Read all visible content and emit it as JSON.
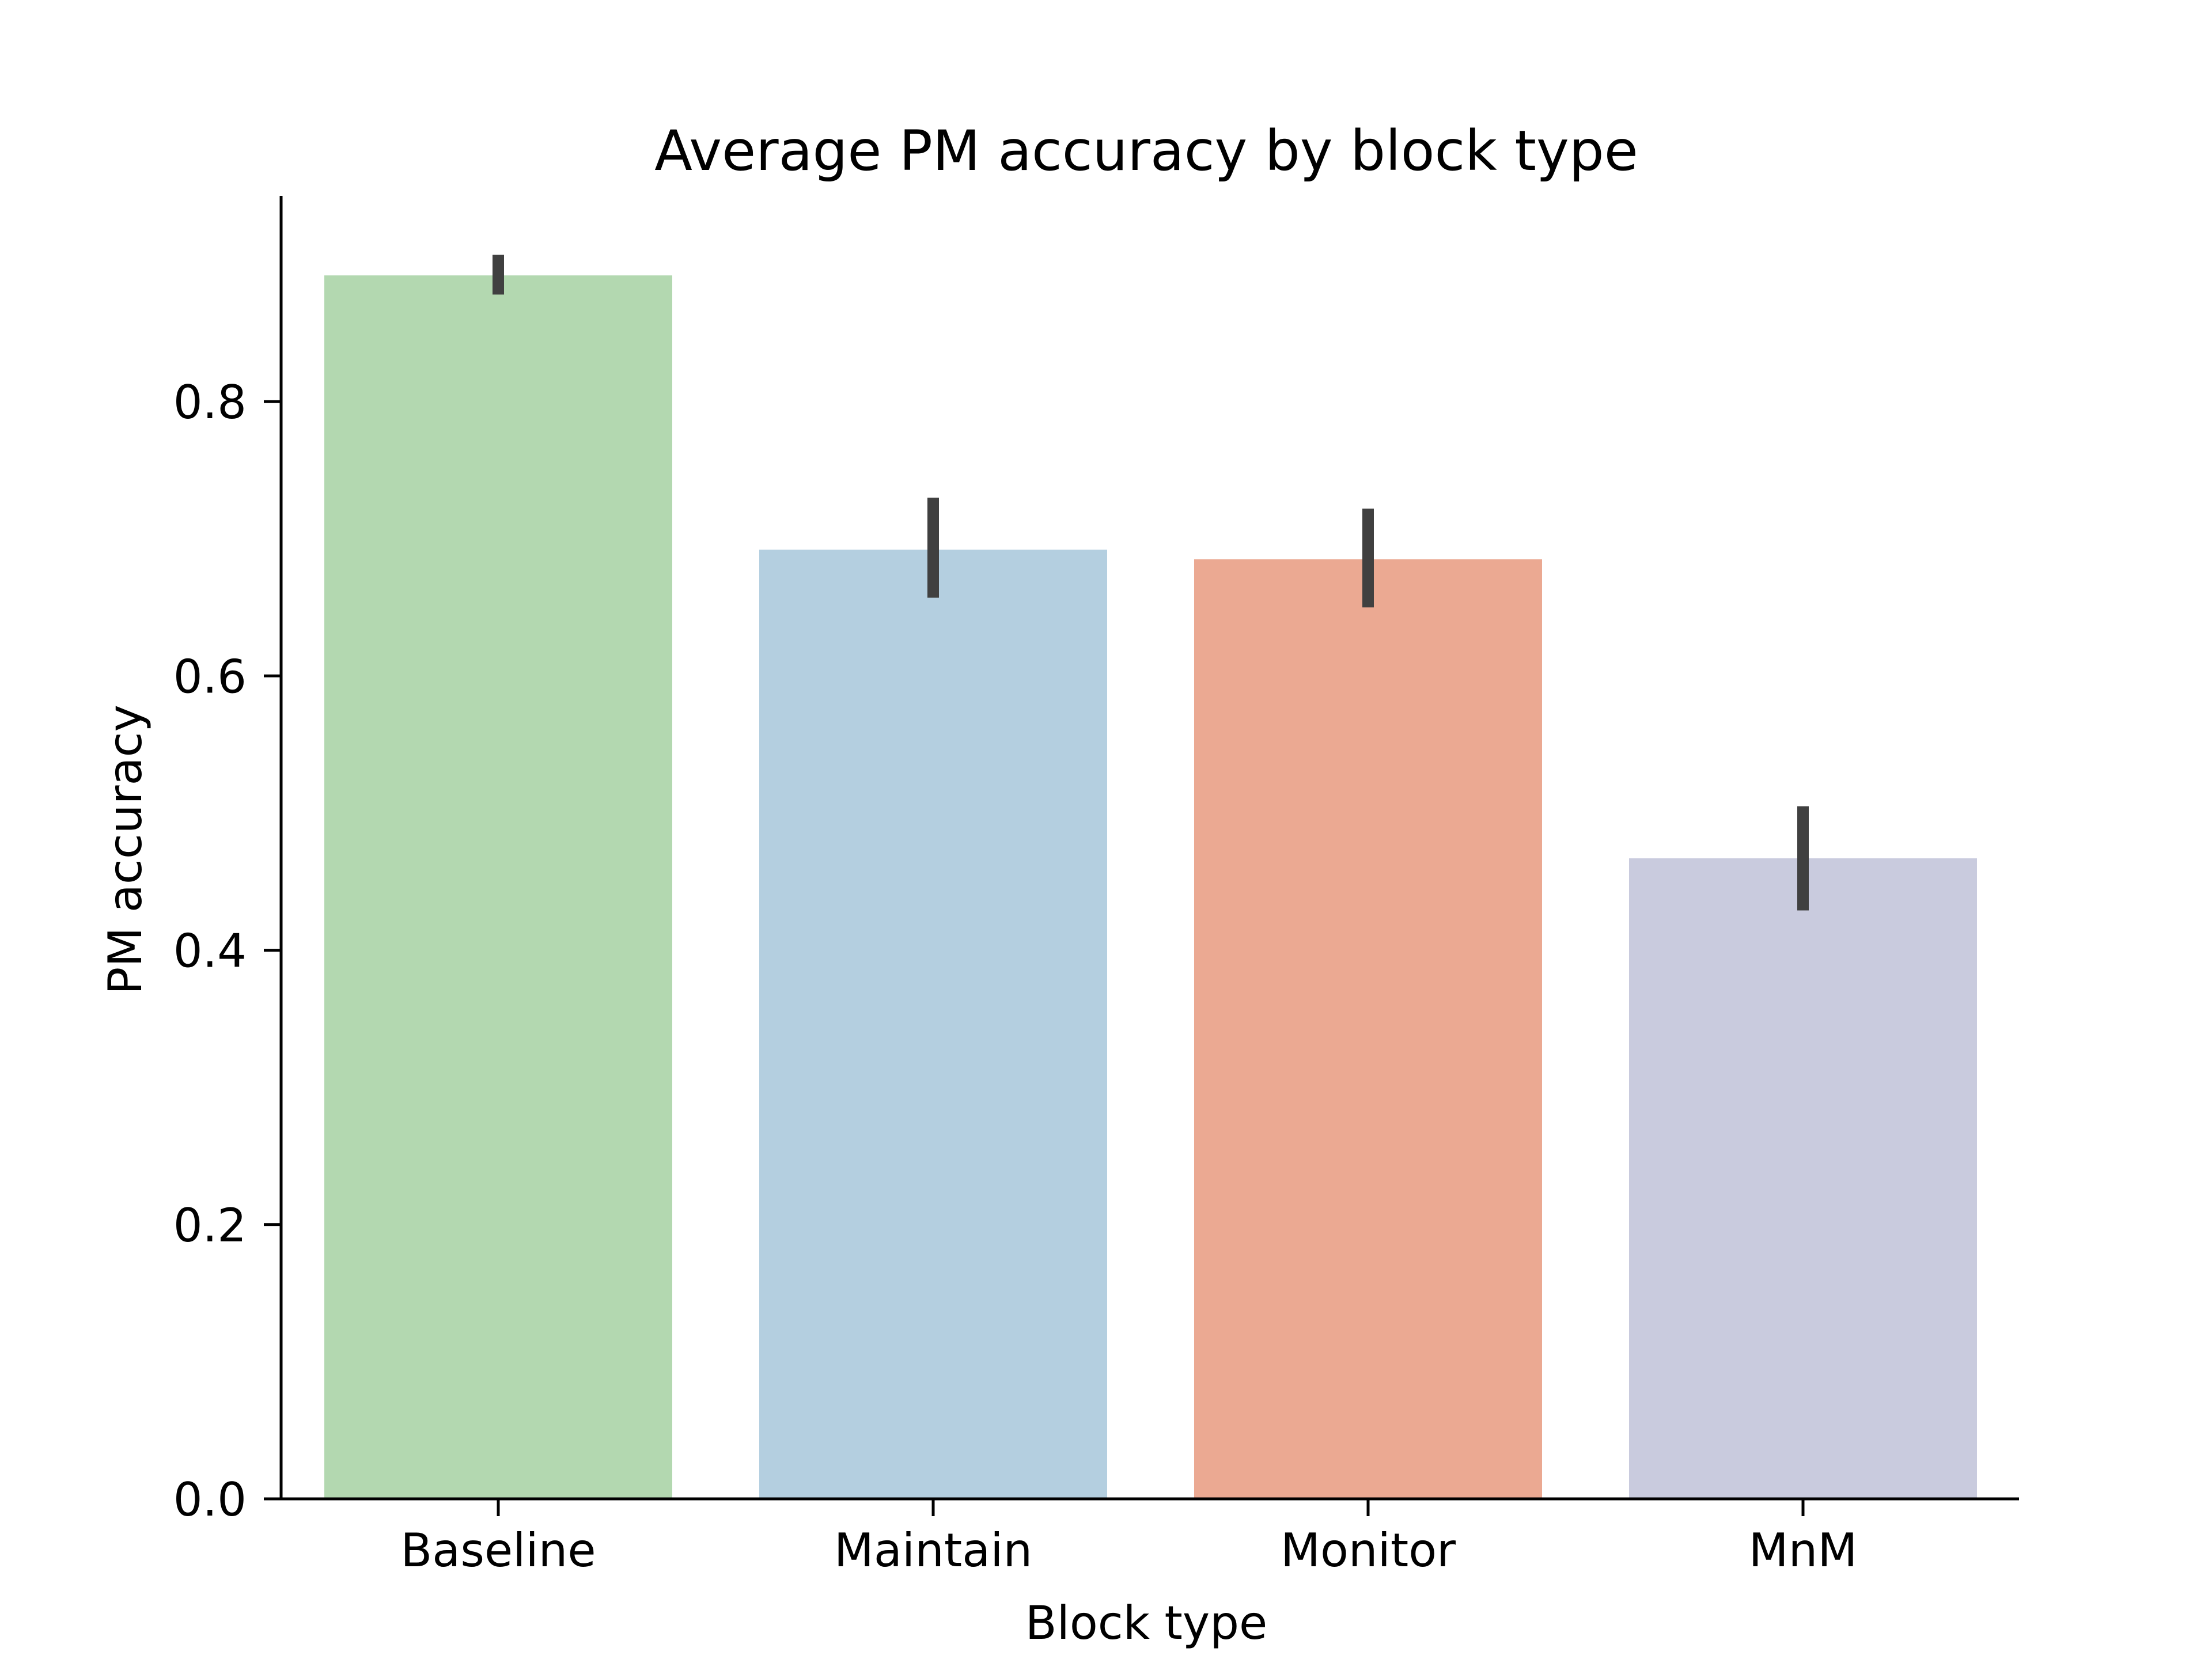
{
  "chart_data": {
    "type": "bar",
    "title": "Average PM accuracy by block type",
    "xlabel": "Block type",
    "ylabel": "PM accuracy",
    "categories": [
      "Baseline",
      "Maintain",
      "Monitor",
      "MnM"
    ],
    "values": [
      0.892,
      0.692,
      0.685,
      0.467
    ],
    "error_low": [
      0.878,
      0.657,
      0.65,
      0.429
    ],
    "error_high": [
      0.907,
      0.73,
      0.722,
      0.505
    ],
    "bar_colors": [
      "#b3d8b0",
      "#b4cfe0",
      "#eba992",
      "#c9cbde"
    ],
    "error_color": "#404040",
    "ylim": [
      0,
      0.95
    ],
    "yticks": [
      0.0,
      0.2,
      0.4,
      0.6,
      0.8
    ],
    "ytick_labels": [
      "0.0",
      "0.2",
      "0.4",
      "0.6",
      "0.8"
    ],
    "grid": false,
    "legend": "none"
  }
}
